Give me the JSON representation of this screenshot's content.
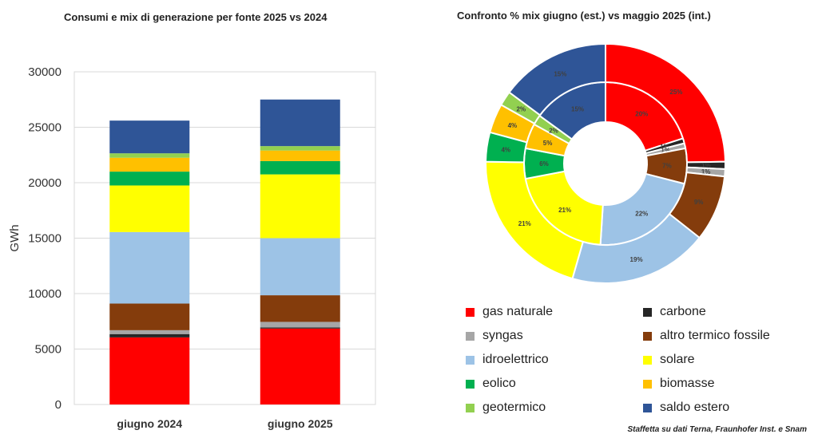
{
  "colors": {
    "gas naturale": "#ff0000",
    "carbone": "#262626",
    "syngas": "#a6a6a6",
    "altro termico fossile": "#843c0c",
    "idroelettrico": "#9dc3e6",
    "solare": "#ffff00",
    "eolico": "#00b050",
    "biomasse": "#ffc000",
    "geotermico": "#92d050",
    "saldo estero": "#2f5597"
  },
  "chart_data": [
    {
      "type": "bar",
      "stacked": true,
      "title": "Consumi e mix di generazione per fonte 2025 vs 2024",
      "ylabel": "GWh",
      "xlabel": "",
      "ylim": [
        0,
        30000
      ],
      "yticks": [
        "0",
        "5000",
        "10000",
        "15000",
        "20000",
        "25000",
        "30000"
      ],
      "grid": true,
      "categories": [
        "giugno 2024",
        "giugno 2025"
      ],
      "series": [
        {
          "name": "gas naturale",
          "values": [
            6050,
            6850
          ]
        },
        {
          "name": "carbone",
          "values": [
            300,
            100
          ]
        },
        {
          "name": "syngas",
          "values": [
            350,
            500
          ]
        },
        {
          "name": "altro termico fossile",
          "values": [
            2400,
            2400
          ]
        },
        {
          "name": "idroelettrico",
          "values": [
            6450,
            5150
          ]
        },
        {
          "name": "solare",
          "values": [
            4200,
            5750
          ]
        },
        {
          "name": "eolico",
          "values": [
            1250,
            1200
          ]
        },
        {
          "name": "biomasse",
          "values": [
            1250,
            950
          ]
        },
        {
          "name": "geotermico",
          "values": [
            400,
            400
          ]
        },
        {
          "name": "saldo estero",
          "values": [
            2950,
            4200
          ]
        }
      ]
    },
    {
      "type": "pie",
      "subtype": "donut",
      "title": "Confronto % mix giugno (est.) vs maggio 2025 (int.)",
      "legend_position": "bottom",
      "rings": [
        {
          "name": "ring-inner",
          "labels": [
            "gas naturale",
            "carbone",
            "syngas",
            "altro termico fossile",
            "idroelettrico",
            "solare",
            "eolico",
            "biomasse",
            "geotermico",
            "saldo estero"
          ],
          "values": [
            20,
            1,
            1,
            7,
            22,
            21,
            6,
            5,
            2,
            15
          ],
          "data_labels": [
            "20%",
            "1%",
            "1%",
            "7%",
            "22%",
            "21%",
            "6%",
            "5%",
            "2%",
            "15%"
          ]
        },
        {
          "name": "ring-outer",
          "labels": [
            "gas naturale",
            "carbone",
            "syngas",
            "altro termico fossile",
            "idroelettrico",
            "solare",
            "eolico",
            "biomasse",
            "geotermico",
            "saldo estero"
          ],
          "values": [
            25,
            1,
            1,
            9,
            19,
            21,
            4,
            4,
            2,
            15
          ],
          "data_labels": [
            "25%",
            "1%",
            "1%",
            "9%",
            "19%",
            "21%",
            "4%",
            "4%",
            "2%",
            "15%"
          ]
        }
      ],
      "legend": [
        "gas naturale",
        "carbone",
        "syngas",
        "altro termico fossile",
        "idroelettrico",
        "solare",
        "eolico",
        "biomasse",
        "geotermico",
        "saldo estero"
      ]
    }
  ],
  "credit": "Staffetta su dati Terna, Fraunhofer Inst. e Snam"
}
